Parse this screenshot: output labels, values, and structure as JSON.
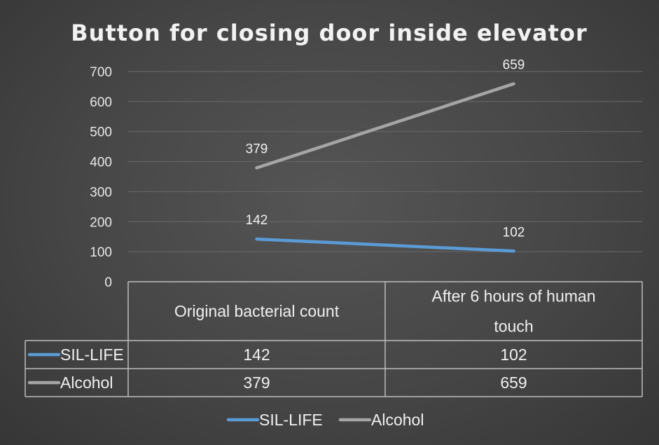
{
  "colors": {
    "sil_life": "#5b9bd5",
    "alcohol": "#a5a5a5",
    "grid": "#6a6a6a",
    "table_border": "#bdbdbd"
  },
  "chart_data": {
    "type": "line",
    "title": "Button for closing door inside elevator",
    "categories": [
      [
        "Original bacterial count"
      ],
      [
        "After 6 hours of human",
        "touch"
      ]
    ],
    "series": [
      {
        "name": "SIL-LIFE",
        "values": [
          142,
          102
        ]
      },
      {
        "name": "Alcohol",
        "values": [
          379,
          659
        ]
      }
    ],
    "ylim": [
      0,
      700
    ],
    "yticks": [
      0,
      100,
      200,
      300,
      400,
      500,
      600,
      700
    ],
    "grid": true,
    "data_table": true,
    "legend": "bottom"
  }
}
